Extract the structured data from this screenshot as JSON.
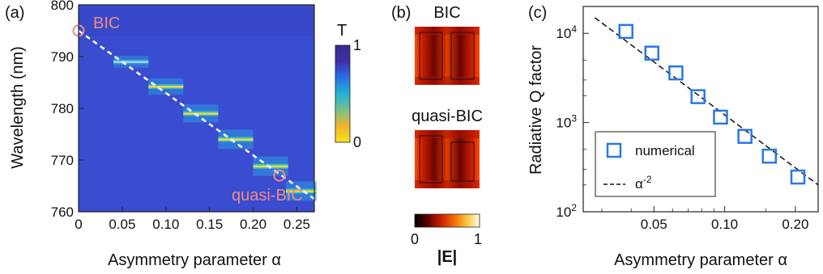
{
  "panels": {
    "a": "(a)",
    "b": "(b)",
    "c": "(c)"
  },
  "chart_data": [
    {
      "type": "heatmap",
      "panel": "(a)",
      "xlabel": "Asymmetry parameter α",
      "ylabel": "Wavelength (nm)",
      "xlim": [
        0,
        0.27
      ],
      "ylim": [
        760,
        800
      ],
      "xticks": [
        "0",
        "0.05",
        "0.10",
        "0.15",
        "0.20",
        "0.25"
      ],
      "yticks": [
        "760",
        "770",
        "780",
        "790",
        "800"
      ],
      "colorbar": {
        "label": "T",
        "min": "0",
        "max": "1",
        "colors": [
          "#f7e21c",
          "#f2b52d",
          "#78c28a",
          "#1fb3d3",
          "#2a6fe6",
          "#3f2fa6",
          "#342a8f"
        ]
      },
      "background_color": "#3a4ccf",
      "resonances": [
        {
          "alpha": 0.06,
          "wavelength": 789.0,
          "width": 0.04,
          "strength": 0.5
        },
        {
          "alpha": 0.1,
          "wavelength": 784.2,
          "width": 0.04,
          "strength": 0.8
        },
        {
          "alpha": 0.14,
          "wavelength": 779.0,
          "width": 0.04,
          "strength": 0.9
        },
        {
          "alpha": 0.18,
          "wavelength": 774.0,
          "width": 0.04,
          "strength": 1.0
        },
        {
          "alpha": 0.22,
          "wavelength": 768.8,
          "width": 0.04,
          "strength": 1.0
        },
        {
          "alpha": 0.255,
          "wavelength": 764.0,
          "width": 0.035,
          "strength": 1.0
        }
      ],
      "fit_line": {
        "x": [
          0,
          0.27
        ],
        "y": [
          795,
          762.5
        ],
        "style": "dashed",
        "color": "#ffffff"
      },
      "markers": [
        {
          "label": "BIC",
          "alpha": 0,
          "wavelength": 795,
          "color": "#f08a84"
        },
        {
          "label": "quasi-BIC",
          "alpha": 0.23,
          "wavelength": 767,
          "color": "#f08a84"
        }
      ]
    },
    {
      "type": "heatmap",
      "panel": "(b)",
      "fields": [
        {
          "label": "BIC",
          "symmetric": true
        },
        {
          "label": "quasi-BIC",
          "symmetric": false
        }
      ],
      "colorbar": {
        "label": "|E|",
        "min": "0",
        "max": "1",
        "colors": [
          "#000000",
          "#5a0000",
          "#c81e00",
          "#f06a00",
          "#fbc43a",
          "#ffffe6"
        ]
      }
    },
    {
      "type": "scatter",
      "panel": "(c)",
      "xlabel": "Asymmetry parameter α",
      "ylabel": "Radiative Q factor",
      "xscale": "log",
      "yscale": "log",
      "xlim": [
        0.025,
        0.25
      ],
      "ylim": [
        100,
        20000
      ],
      "xticks": [
        {
          "value": 0.05,
          "label": "0.05"
        },
        {
          "value": 0.1,
          "label": "0.10"
        },
        {
          "value": 0.2,
          "label": "0.20"
        }
      ],
      "yticks": [
        {
          "value": 100,
          "base": "10",
          "exp": "2"
        },
        {
          "value": 1000,
          "base": "10",
          "exp": "3"
        },
        {
          "value": 10000,
          "base": "10",
          "exp": "4"
        }
      ],
      "series": [
        {
          "name": "numerical",
          "color": "#2a78e0",
          "x": [
            0.038,
            0.049,
            0.062,
            0.077,
            0.096,
            0.122,
            0.155,
            0.205
          ],
          "y": [
            10500,
            6000,
            3600,
            1950,
            1150,
            700,
            420,
            245
          ]
        }
      ],
      "fit": {
        "name": "α",
        "sup": "-2",
        "style": "dashed",
        "color": "#111111",
        "x": [
          0.028,
          0.25
        ],
        "y": [
          15000,
          200
        ]
      },
      "legend_position": "bottom-left"
    }
  ]
}
